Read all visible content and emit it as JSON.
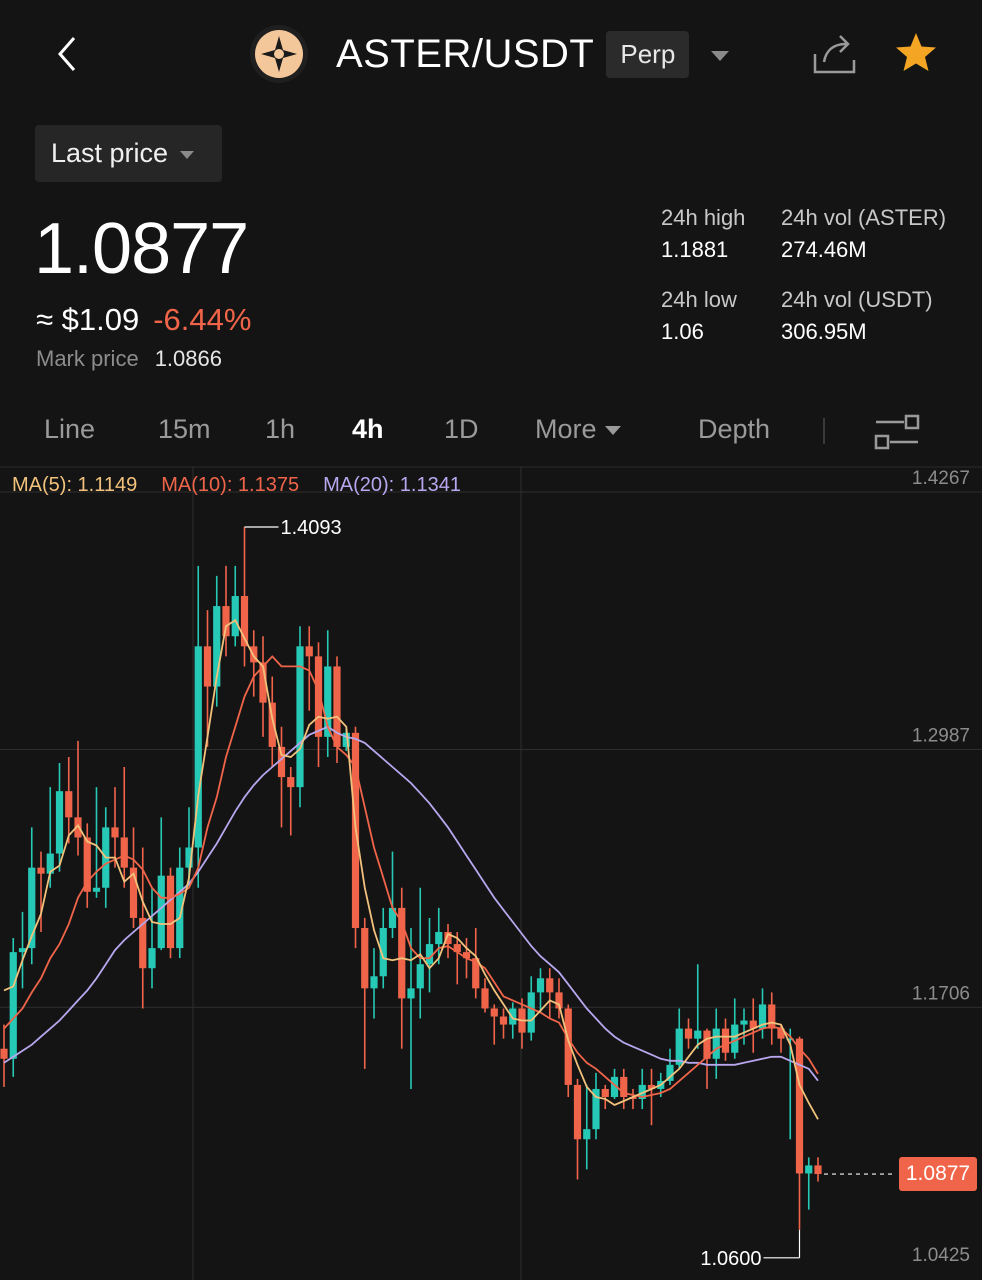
{
  "header": {
    "pair": "ASTER/USDT",
    "contract_type": "Perp",
    "icons": {
      "back": "chevron-left-icon",
      "logo": "aster-logo-icon",
      "share": "share-icon",
      "favorite": "star-icon"
    },
    "colors": {
      "favorite": "#f5a524"
    }
  },
  "price_type": {
    "label": "Last price"
  },
  "ticker": {
    "last_price": "1.0877",
    "usd_price": "≈ $1.09",
    "change_pct": "-6.44%",
    "mark_price_label": "Mark price",
    "mark_price": "1.0866",
    "colors": {
      "down": "#f0654a",
      "up": "#26c9b5"
    }
  },
  "stats": {
    "high_label": "24h high",
    "high_value": "1.1881",
    "low_label": "24h low",
    "low_value": "1.06",
    "vol_base_label": "24h vol (ASTER)",
    "vol_base_value": "274.46M",
    "vol_quote_label": "24h vol (USDT)",
    "vol_quote_value": "306.95M"
  },
  "intervals": {
    "items": [
      "Line",
      "15m",
      "1h",
      "4h",
      "1D",
      "More",
      "Depth"
    ],
    "active": "4h"
  },
  "chart_data": {
    "type": "candlestick",
    "title": "",
    "ylim": [
      1.0425,
      1.4267
    ],
    "y_ticks": [
      "1.4267",
      "1.2987",
      "1.1706",
      "1.0425"
    ],
    "grid": true,
    "ma_legend": {
      "ma5": "MA(5): 1.1149",
      "ma10": "MA(10): 1.1375",
      "ma20": "MA(20): 1.1341"
    },
    "annotations": {
      "high": "1.4093",
      "low": "1.0600"
    },
    "current_price_tag": "1.0877",
    "candles": [
      [
        1.15,
        1.145,
        1.162,
        1.131
      ],
      [
        1.145,
        1.198,
        1.205,
        1.136
      ],
      [
        1.198,
        1.2,
        1.218,
        1.18
      ],
      [
        1.2,
        1.24,
        1.26,
        1.192
      ],
      [
        1.24,
        1.237,
        1.248,
        1.208
      ],
      [
        1.237,
        1.247,
        1.28,
        1.23
      ],
      [
        1.247,
        1.278,
        1.292,
        1.238
      ],
      [
        1.278,
        1.265,
        1.295,
        1.252
      ],
      [
        1.265,
        1.255,
        1.303,
        1.246
      ],
      [
        1.255,
        1.228,
        1.262,
        1.22
      ],
      [
        1.228,
        1.23,
        1.28,
        1.225
      ],
      [
        1.23,
        1.26,
        1.27,
        1.22
      ],
      [
        1.26,
        1.255,
        1.28,
        1.24
      ],
      [
        1.255,
        1.24,
        1.29,
        1.23
      ],
      [
        1.24,
        1.215,
        1.26,
        1.21
      ],
      [
        1.215,
        1.19,
        1.25,
        1.17
      ],
      [
        1.19,
        1.2,
        1.23,
        1.18
      ],
      [
        1.2,
        1.236,
        1.265,
        1.199
      ],
      [
        1.236,
        1.2,
        1.24,
        1.195
      ],
      [
        1.2,
        1.24,
        1.25,
        1.195
      ],
      [
        1.24,
        1.25,
        1.27,
        1.23
      ],
      [
        1.25,
        1.35,
        1.39,
        1.23
      ],
      [
        1.35,
        1.33,
        1.368,
        1.3
      ],
      [
        1.33,
        1.37,
        1.385,
        1.32
      ],
      [
        1.37,
        1.355,
        1.39,
        1.345
      ],
      [
        1.355,
        1.375,
        1.39,
        1.35
      ],
      [
        1.375,
        1.35,
        1.4093,
        1.34
      ],
      [
        1.35,
        1.342,
        1.358,
        1.325
      ],
      [
        1.342,
        1.322,
        1.355,
        1.305
      ],
      [
        1.322,
        1.3,
        1.335,
        1.29
      ],
      [
        1.3,
        1.285,
        1.31,
        1.26
      ],
      [
        1.285,
        1.28,
        1.29,
        1.256
      ],
      [
        1.28,
        1.35,
        1.36,
        1.27
      ],
      [
        1.35,
        1.345,
        1.36,
        1.318
      ],
      [
        1.345,
        1.305,
        1.352,
        1.29
      ],
      [
        1.305,
        1.34,
        1.358,
        1.295
      ],
      [
        1.34,
        1.3,
        1.345,
        1.292
      ],
      [
        1.3,
        1.307,
        1.31,
        1.298
      ],
      [
        1.307,
        1.21,
        1.31,
        1.2
      ],
      [
        1.21,
        1.18,
        1.215,
        1.14
      ],
      [
        1.18,
        1.186,
        1.2,
        1.165
      ],
      [
        1.186,
        1.21,
        1.22,
        1.18
      ],
      [
        1.21,
        1.22,
        1.248,
        1.205
      ],
      [
        1.22,
        1.175,
        1.23,
        1.15
      ],
      [
        1.175,
        1.18,
        1.21,
        1.13
      ],
      [
        1.18,
        1.192,
        1.23,
        1.165
      ],
      [
        1.192,
        1.202,
        1.215,
        1.178
      ],
      [
        1.202,
        1.208,
        1.22,
        1.192
      ],
      [
        1.208,
        1.202,
        1.212,
        1.195
      ],
      [
        1.202,
        1.198,
        1.208,
        1.182
      ],
      [
        1.198,
        1.195,
        1.205,
        1.185
      ],
      [
        1.195,
        1.18,
        1.21,
        1.175
      ],
      [
        1.18,
        1.17,
        1.185,
        1.168
      ],
      [
        1.17,
        1.166,
        1.172,
        1.152
      ],
      [
        1.166,
        1.162,
        1.17,
        1.155
      ],
      [
        1.162,
        1.17,
        1.173,
        1.155
      ],
      [
        1.17,
        1.158,
        1.175,
        1.15
      ],
      [
        1.158,
        1.178,
        1.186,
        1.154
      ],
      [
        1.178,
        1.185,
        1.19,
        1.168
      ],
      [
        1.185,
        1.178,
        1.19,
        1.165
      ],
      [
        1.178,
        1.17,
        1.185,
        1.165
      ],
      [
        1.17,
        1.132,
        1.172,
        1.126
      ],
      [
        1.132,
        1.105,
        1.135,
        1.085
      ],
      [
        1.105,
        1.11,
        1.132,
        1.09
      ],
      [
        1.11,
        1.13,
        1.138,
        1.105
      ],
      [
        1.13,
        1.126,
        1.132,
        1.12
      ],
      [
        1.126,
        1.136,
        1.14,
        1.125
      ],
      [
        1.136,
        1.126,
        1.14,
        1.12
      ],
      [
        1.126,
        1.125,
        1.13,
        1.12
      ],
      [
        1.125,
        1.132,
        1.14,
        1.12
      ],
      [
        1.132,
        1.13,
        1.14,
        1.112
      ],
      [
        1.13,
        1.134,
        1.138,
        1.126
      ],
      [
        1.134,
        1.142,
        1.15,
        1.132
      ],
      [
        1.142,
        1.16,
        1.17,
        1.14
      ],
      [
        1.16,
        1.155,
        1.165,
        1.15
      ],
      [
        1.155,
        1.159,
        1.192,
        1.15
      ],
      [
        1.159,
        1.145,
        1.16,
        1.13
      ],
      [
        1.145,
        1.16,
        1.17,
        1.135
      ],
      [
        1.16,
        1.148,
        1.165,
        1.144
      ],
      [
        1.148,
        1.162,
        1.175,
        1.145
      ],
      [
        1.162,
        1.164,
        1.17,
        1.152
      ],
      [
        1.164,
        1.16,
        1.175,
        1.148
      ],
      [
        1.16,
        1.172,
        1.18,
        1.155
      ],
      [
        1.172,
        1.16,
        1.178,
        1.152
      ],
      [
        1.16,
        1.155,
        1.162,
        1.148
      ],
      [
        1.155,
        1.155,
        1.16,
        1.105
      ],
      [
        1.155,
        1.088,
        1.156,
        1.06
      ],
      [
        1.088,
        1.092,
        1.096,
        1.07
      ],
      [
        1.092,
        1.0877,
        1.096,
        1.084
      ]
    ],
    "ma5": [
      1.179,
      1.181,
      1.194,
      1.206,
      1.217,
      1.238,
      1.241,
      1.256,
      1.261,
      1.253,
      1.251,
      1.245,
      1.245,
      1.233,
      1.237,
      1.223,
      1.213,
      1.212,
      1.212,
      1.215,
      1.235,
      1.276,
      1.305,
      1.335,
      1.36,
      1.363,
      1.354,
      1.345,
      1.34,
      1.314,
      1.296,
      1.295,
      1.299,
      1.311,
      1.315,
      1.314,
      1.315,
      1.31,
      1.26,
      1.23,
      1.209,
      1.195,
      1.194,
      1.195,
      1.194,
      1.197,
      1.19,
      1.195,
      1.207,
      1.205,
      1.2,
      1.196,
      1.187,
      1.179,
      1.172,
      1.165,
      1.164,
      1.164,
      1.169,
      1.174,
      1.172,
      1.154,
      1.142,
      1.131,
      1.126,
      1.125,
      1.122,
      1.124,
      1.126,
      1.128,
      1.13,
      1.132,
      1.136,
      1.14,
      1.146,
      1.152,
      1.155,
      1.156,
      1.156,
      1.156,
      1.158,
      1.16,
      1.162,
      1.163,
      1.162,
      1.152,
      1.132,
      1.123,
      1.1149
    ],
    "ma10": [
      1.16,
      1.165,
      1.17,
      1.178,
      1.185,
      1.195,
      1.202,
      1.212,
      1.225,
      1.233,
      1.238,
      1.242,
      1.244,
      1.246,
      1.244,
      1.239,
      1.23,
      1.225,
      1.225,
      1.227,
      1.23,
      1.24,
      1.26,
      1.275,
      1.295,
      1.31,
      1.325,
      1.335,
      1.34,
      1.345,
      1.34,
      1.34,
      1.34,
      1.338,
      1.328,
      1.31,
      1.3,
      1.296,
      1.29,
      1.27,
      1.25,
      1.235,
      1.22,
      1.213,
      1.2,
      1.195,
      1.195,
      1.2,
      1.201,
      1.198,
      1.195,
      1.193,
      1.19,
      1.183,
      1.176,
      1.174,
      1.172,
      1.17,
      1.168,
      1.165,
      1.163,
      1.155,
      1.148,
      1.143,
      1.14,
      1.136,
      1.132,
      1.128,
      1.127,
      1.126,
      1.127,
      1.128,
      1.13,
      1.134,
      1.138,
      1.142,
      1.146,
      1.15,
      1.152,
      1.154,
      1.156,
      1.158,
      1.16,
      1.161,
      1.16,
      1.156,
      1.15,
      1.145,
      1.1375
    ],
    "ma20": [
      1.143,
      1.146,
      1.149,
      1.152,
      1.156,
      1.16,
      1.164,
      1.169,
      1.174,
      1.179,
      1.185,
      1.192,
      1.199,
      1.204,
      1.208,
      1.212,
      1.216,
      1.22,
      1.224,
      1.228,
      1.232,
      1.238,
      1.245,
      1.252,
      1.26,
      1.268,
      1.275,
      1.281,
      1.286,
      1.29,
      1.294,
      1.298,
      1.302,
      1.306,
      1.308,
      1.31,
      1.307,
      1.305,
      1.304,
      1.302,
      1.298,
      1.294,
      1.29,
      1.286,
      1.282,
      1.277,
      1.272,
      1.266,
      1.26,
      1.253,
      1.246,
      1.239,
      1.232,
      1.225,
      1.219,
      1.213,
      1.207,
      1.201,
      1.196,
      1.192,
      1.188,
      1.182,
      1.176,
      1.17,
      1.165,
      1.16,
      1.156,
      1.153,
      1.151,
      1.149,
      1.147,
      1.145,
      1.144,
      1.144,
      1.143,
      1.143,
      1.142,
      1.142,
      1.142,
      1.142,
      1.143,
      1.144,
      1.145,
      1.146,
      1.146,
      1.144,
      1.142,
      1.14,
      1.1341
    ]
  }
}
